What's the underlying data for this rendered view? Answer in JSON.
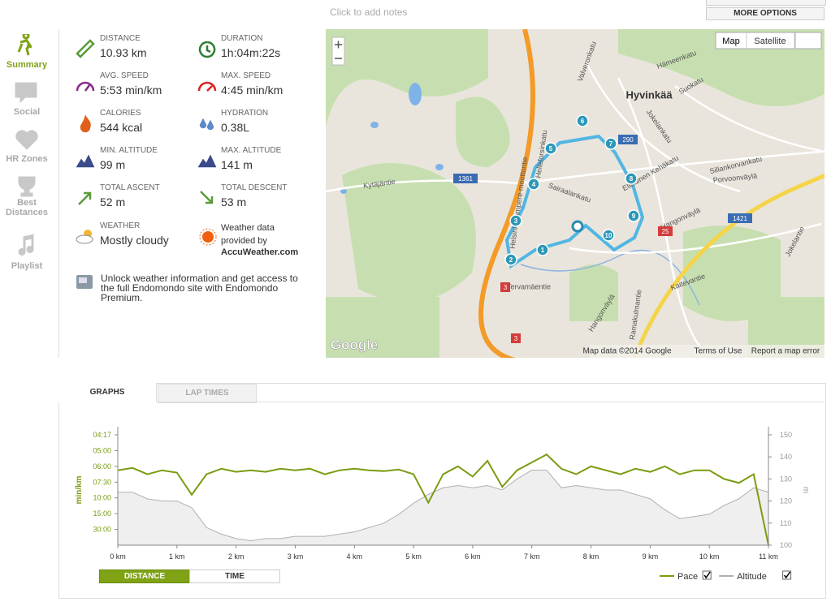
{
  "header": {
    "notes": "Click to add notes",
    "more_options": "MORE OPTIONS"
  },
  "nav": [
    "Summary",
    "Social",
    "HR Zones",
    "Best Distances",
    "Playlist"
  ],
  "stats": [
    {
      "label": "DISTANCE",
      "value": "10.93 km"
    },
    {
      "label": "DURATION",
      "value": "1h:04m:22s"
    },
    {
      "label": "AVG. SPEED",
      "value": "5:53 min/km"
    },
    {
      "label": "MAX. SPEED",
      "value": "4:45 min/km"
    },
    {
      "label": "CALORIES",
      "value": "544 kcal"
    },
    {
      "label": "HYDRATION",
      "value": "0.38L"
    },
    {
      "label": "MIN. ALTITUDE",
      "value": "99 m"
    },
    {
      "label": "MAX. ALTITUDE",
      "value": "141 m"
    },
    {
      "label": "TOTAL ASCENT",
      "value": "52 m"
    },
    {
      "label": "TOTAL DESCENT",
      "value": "53 m"
    }
  ],
  "weather": {
    "label": "WEATHER",
    "value": "Mostly cloudy",
    "credit": "Weather data provided by",
    "source": "AccuWeather.com"
  },
  "promo": "Unlock weather information and get access to the full Endomondo site with Endomondo Premium.",
  "map": {
    "buttons": [
      "Map",
      "Satellite"
    ],
    "town": "Hyvinkää",
    "markers": [
      "1",
      "2",
      "3",
      "4",
      "5",
      "6",
      "7",
      "8",
      "9",
      "10"
    ],
    "roads": [
      "1361",
      "290",
      "1421",
      "25",
      "3",
      "3"
    ],
    "streets": [
      "Kytäjäntie",
      "Helsinki-Tampere-moottoritie",
      "Hangonväylä",
      "Hangonväylä",
      "Porvoonväylä",
      "Sairaalankatu",
      "Suokatu",
      "Jokelankatu",
      "Eteläinen Kehäkatu",
      "Sillankorvankatu",
      "Hämeenkatu",
      "Valveronkatu",
      "Tervamäentie",
      "Kaitevantie",
      "Ramakulmantie",
      "Jokelantie",
      "Helleforsinkatu"
    ],
    "footer": [
      "Map data ©2014 Google",
      "Terms of Use",
      "Report a map error"
    ],
    "logo": "Google"
  },
  "tabs": [
    "GRAPHS",
    "LAP TIMES"
  ],
  "toggles": [
    "DISTANCE",
    "TIME"
  ],
  "chart_data": {
    "type": "line",
    "x": [
      0,
      0.25,
      0.5,
      0.75,
      1,
      1.25,
      1.5,
      1.75,
      2,
      2.25,
      2.5,
      2.75,
      3,
      3.25,
      3.5,
      3.75,
      4,
      4.25,
      4.5,
      4.75,
      5,
      5.25,
      5.5,
      5.75,
      6,
      6.25,
      6.5,
      6.75,
      7,
      7.25,
      7.5,
      7.75,
      8,
      8.25,
      8.5,
      8.75,
      9,
      9.25,
      9.5,
      9.75,
      10,
      10.25,
      10.5,
      10.75,
      11
    ],
    "xlim": [
      0,
      11
    ],
    "xticks": [
      {
        "value": 0,
        "label": "0 km"
      },
      {
        "value": 1,
        "label": "1 km"
      },
      {
        "value": 2,
        "label": "2 km"
      },
      {
        "value": 3,
        "label": "3 km"
      },
      {
        "value": 4,
        "label": "4 km"
      },
      {
        "value": 5,
        "label": "5 km"
      },
      {
        "value": 6,
        "label": "6 km"
      },
      {
        "value": 7,
        "label": "7 km"
      },
      {
        "value": 8,
        "label": "8 km"
      },
      {
        "value": 9,
        "label": "9 km"
      },
      {
        "value": 10,
        "label": "10 km"
      },
      {
        "value": 11,
        "label": "11 km"
      }
    ],
    "ylabel": "min/km",
    "ylim": [
      0,
      14
    ],
    "yticks": [
      {
        "value": 14,
        "label": "04:17"
      },
      {
        "value": 12,
        "label": "05:00"
      },
      {
        "value": 10,
        "label": "06:00"
      },
      {
        "value": 8,
        "label": "07:30"
      },
      {
        "value": 6,
        "label": "10:00"
      },
      {
        "value": 4,
        "label": "15:00"
      },
      {
        "value": 2,
        "label": "30:00"
      }
    ],
    "y2label": "m",
    "y2lim": [
      100,
      150
    ],
    "y2ticks": [
      100,
      110,
      120,
      130,
      140,
      150
    ],
    "series": [
      {
        "name": "Pace",
        "color": "#7a9c12",
        "values": [
          9.5,
          9.8,
          9.0,
          9.5,
          9.2,
          6.4,
          9.0,
          9.7,
          9.3,
          9.5,
          9.3,
          9.7,
          9.5,
          9.7,
          9.0,
          9.5,
          9.7,
          9.5,
          9.4,
          9.6,
          9.0,
          5.4,
          9.0,
          10.0,
          8.7,
          10.7,
          7.4,
          9.5,
          10.5,
          11.5,
          9.7,
          9.0,
          10.0,
          9.5,
          9.0,
          9.7,
          9.3,
          10.0,
          9.0,
          9.5,
          9.5,
          8.4,
          7.9,
          9.0,
          0
        ]
      },
      {
        "name": "Altitude",
        "color": "#b0b0b0",
        "axis": "y2",
        "values": [
          124,
          124,
          121,
          120,
          120,
          117,
          108,
          105,
          103,
          102,
          103,
          103,
          104,
          104,
          104,
          105,
          106,
          108,
          110,
          114,
          119,
          123,
          126,
          127,
          126,
          127,
          125,
          130,
          134,
          134,
          126,
          127,
          126,
          125,
          125,
          123,
          121,
          116,
          112,
          113,
          114,
          118,
          121,
          126,
          124
        ]
      }
    ]
  }
}
